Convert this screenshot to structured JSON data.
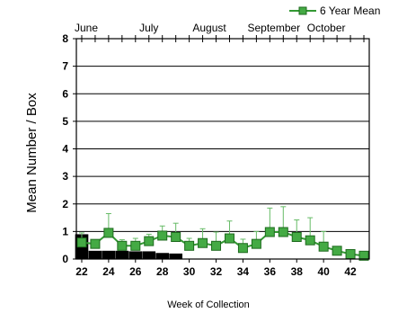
{
  "chart_data": {
    "type": "line",
    "xlabel": "Week of Collection",
    "ylabel": "Mean Number / Box",
    "xlim": [
      21.6,
      43.4
    ],
    "ylim": [
      0,
      8
    ],
    "xticks": [
      22,
      24,
      26,
      28,
      30,
      32,
      34,
      36,
      38,
      40,
      42
    ],
    "yticks": [
      0,
      1,
      2,
      3,
      4,
      5,
      6,
      7,
      8
    ],
    "grid": "horizontal",
    "legend": {
      "position": "top-right",
      "entries": [
        "6 Year Mean"
      ]
    },
    "months": [
      {
        "label": "June",
        "week": 22
      },
      {
        "label": "July",
        "week": 27
      },
      {
        "label": "August",
        "week": 31.5
      },
      {
        "label": "September",
        "week": 36.3
      },
      {
        "label": "October",
        "week": 40.2
      }
    ],
    "month_ticks": [
      22,
      23,
      24,
      25,
      26,
      27,
      28,
      29,
      30,
      31,
      32,
      33,
      34,
      35,
      36,
      37,
      38,
      39,
      40,
      41,
      42,
      43
    ],
    "colors": {
      "line": "#339933",
      "marker": "#44aa44",
      "marker_edge": "#1f6b1f",
      "errorbar": "#66bb66",
      "bars": "#000000"
    },
    "series": [
      {
        "name": "6 Year Mean",
        "type": "line",
        "x": [
          22,
          23,
          24,
          25,
          26,
          27,
          28,
          29,
          30,
          31,
          32,
          33,
          34,
          35,
          36,
          37,
          38,
          39,
          40,
          41,
          42,
          43
        ],
        "values": [
          0.6,
          0.55,
          0.95,
          0.48,
          0.48,
          0.65,
          0.85,
          0.8,
          0.48,
          0.58,
          0.48,
          0.75,
          0.4,
          0.55,
          0.98,
          0.98,
          0.8,
          0.68,
          0.45,
          0.3,
          0.18,
          0.12
        ],
        "error_upper": [
          0.95,
          0.7,
          1.65,
          0.7,
          0.75,
          0.9,
          1.2,
          1.3,
          0.75,
          1.1,
          0.98,
          1.38,
          0.72,
          1.0,
          1.85,
          1.9,
          1.42,
          1.5,
          1.0,
          null,
          null,
          null
        ]
      },
      {
        "name": "",
        "type": "bar",
        "x": [
          22,
          23,
          24,
          25,
          26,
          27,
          28,
          29
        ],
        "values": [
          0.9,
          0.3,
          0.3,
          0.3,
          0.28,
          0.28,
          0.22,
          0.2
        ]
      }
    ]
  }
}
